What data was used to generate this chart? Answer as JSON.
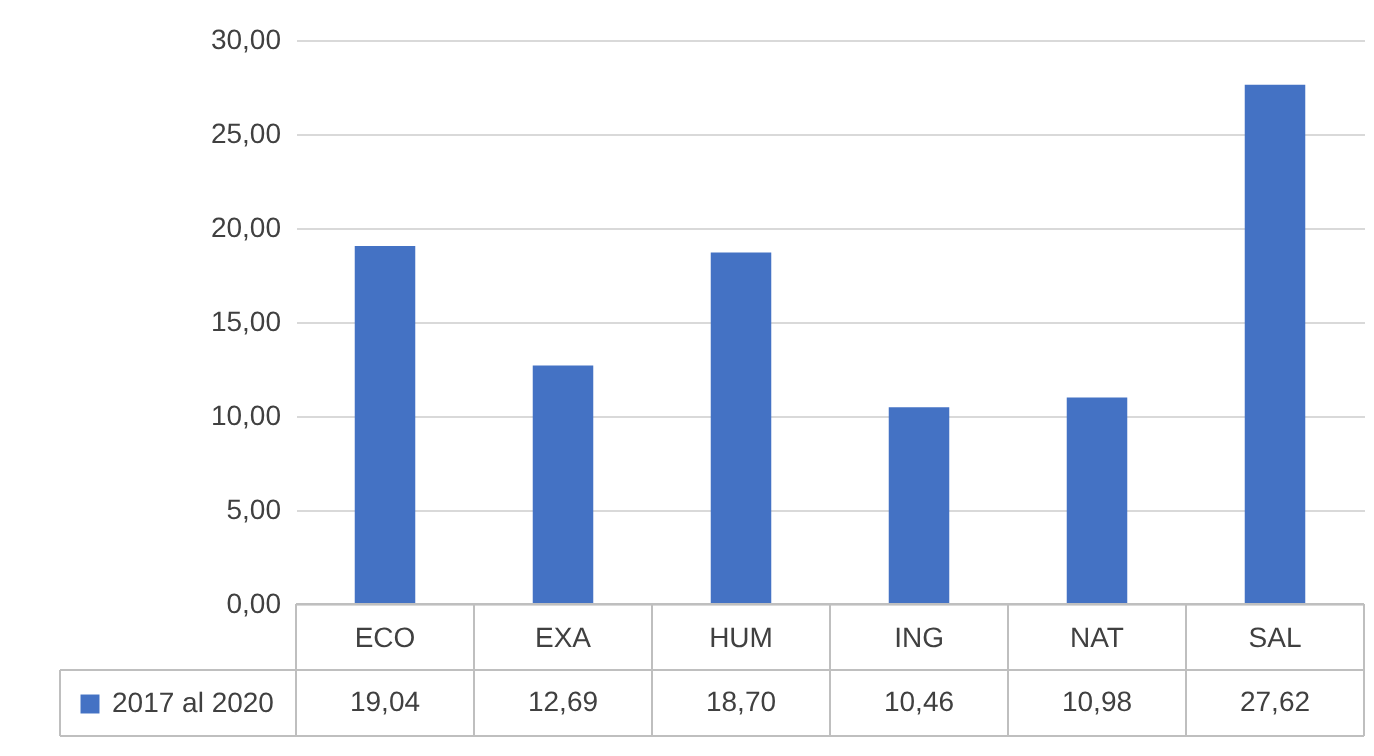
{
  "chart_data": {
    "type": "bar",
    "categories": [
      "ECO",
      "EXA",
      "HUM",
      "ING",
      "NAT",
      "SAL"
    ],
    "series": [
      {
        "name": "2017 al 2020",
        "color": "#4472c4",
        "values": [
          19.04,
          12.69,
          18.7,
          10.46,
          10.98,
          27.62
        ],
        "value_labels": [
          "19,04",
          "12,69",
          "18,70",
          "10,46",
          "10,98",
          "27,62"
        ]
      }
    ],
    "ylim": [
      0,
      30
    ],
    "yticks": [
      {
        "value": 0,
        "label": "0,00"
      },
      {
        "value": 5,
        "label": "5,00"
      },
      {
        "value": 10,
        "label": "10,00"
      },
      {
        "value": 15,
        "label": "15,00"
      },
      {
        "value": 20,
        "label": "20,00"
      },
      {
        "value": 25,
        "label": "25,00"
      },
      {
        "value": 30,
        "label": "30,00"
      }
    ],
    "grid": "y",
    "legend": "bottom left"
  }
}
